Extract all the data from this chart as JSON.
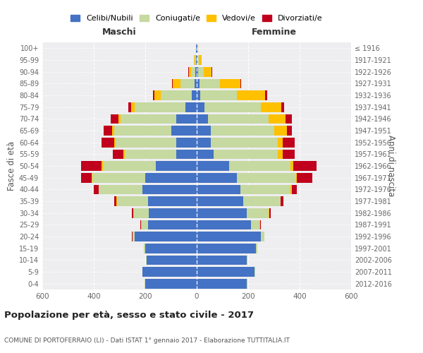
{
  "age_groups": [
    "0-4",
    "5-9",
    "10-14",
    "15-19",
    "20-24",
    "25-29",
    "30-34",
    "35-39",
    "40-44",
    "45-49",
    "50-54",
    "55-59",
    "60-64",
    "65-69",
    "70-74",
    "75-79",
    "80-84",
    "85-89",
    "90-94",
    "95-99",
    "100+"
  ],
  "birth_years": [
    "2012-2016",
    "2007-2011",
    "2002-2006",
    "1997-2001",
    "1992-1996",
    "1987-1991",
    "1982-1986",
    "1977-1981",
    "1972-1976",
    "1967-1971",
    "1962-1966",
    "1957-1961",
    "1952-1956",
    "1947-1951",
    "1942-1946",
    "1937-1941",
    "1932-1936",
    "1927-1931",
    "1922-1926",
    "1917-1921",
    "≤ 1916"
  ],
  "males": {
    "celibi": [
      200,
      210,
      195,
      200,
      240,
      190,
      185,
      190,
      210,
      200,
      160,
      80,
      80,
      100,
      80,
      45,
      20,
      8,
      5,
      3,
      2
    ],
    "coniugati": [
      2,
      2,
      2,
      5,
      10,
      25,
      60,
      120,
      170,
      205,
      205,
      200,
      235,
      220,
      215,
      195,
      120,
      55,
      18,
      5,
      2
    ],
    "vedovi": [
      0,
      0,
      0,
      0,
      0,
      1,
      1,
      1,
      2,
      3,
      5,
      5,
      5,
      8,
      10,
      15,
      25,
      30,
      8,
      2,
      0
    ],
    "divorziati": [
      0,
      0,
      0,
      0,
      1,
      3,
      5,
      10,
      18,
      40,
      80,
      40,
      50,
      35,
      30,
      10,
      5,
      3,
      2,
      0,
      0
    ]
  },
  "females": {
    "nubili": [
      195,
      225,
      195,
      230,
      250,
      210,
      195,
      180,
      170,
      155,
      125,
      65,
      55,
      55,
      45,
      30,
      15,
      10,
      6,
      4,
      2
    ],
    "coniugate": [
      2,
      2,
      2,
      5,
      12,
      35,
      85,
      145,
      195,
      230,
      240,
      250,
      260,
      245,
      235,
      220,
      140,
      80,
      22,
      5,
      2
    ],
    "vedove": [
      0,
      0,
      0,
      0,
      1,
      1,
      2,
      2,
      5,
      5,
      10,
      20,
      20,
      50,
      65,
      80,
      110,
      80,
      30,
      10,
      2
    ],
    "divorziate": [
      0,
      0,
      0,
      0,
      1,
      2,
      5,
      10,
      18,
      60,
      90,
      45,
      45,
      20,
      25,
      10,
      8,
      3,
      2,
      0,
      0
    ]
  },
  "colors": {
    "celibi": "#4472c4",
    "coniugati": "#c5d9a0",
    "vedovi": "#ffc000",
    "divorziati": "#c0001c"
  },
  "title": "Popolazione per età, sesso e stato civile - 2017",
  "subtitle": "COMUNE DI PORTOFERRAIO (LI) - Dati ISTAT 1° gennaio 2017 - Elaborazione TUTTITALIA.IT",
  "xlabel_left": "Maschi",
  "xlabel_right": "Femmine",
  "ylabel_left": "Fasce di età",
  "ylabel_right": "Anni di nascita",
  "xlim": 600,
  "legend_labels": [
    "Celibi/Nubili",
    "Coniugati/e",
    "Vedovi/e",
    "Divorziati/e"
  ],
  "bg_color": "#eeeef0"
}
